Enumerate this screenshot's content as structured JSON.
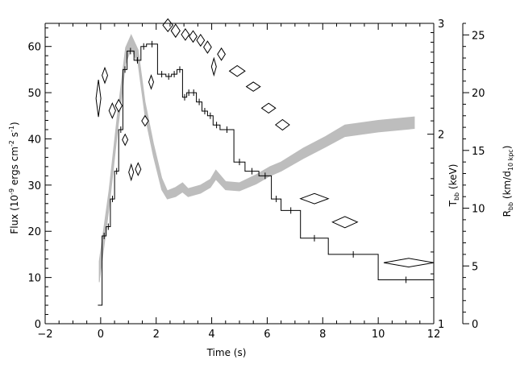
{
  "chart_data": {
    "type": "line",
    "xlabel": "Time (s)",
    "ylabel_left": {
      "main": "Flux (10",
      "e1": "-9",
      "mid": " ergs cm",
      "e2": "-2",
      "mid2": " s",
      "e3": "-1",
      "end": ")"
    },
    "ylabel_right1": {
      "main": "T",
      "sub": "bb",
      "end": " (keV)"
    },
    "ylabel_right2": {
      "main": "R",
      "sub": "bb",
      "mid": " (km/d",
      "sub2": "10 kpc",
      "end": ")"
    },
    "xlim": [
      -2,
      12
    ],
    "ylim_flux": [
      0,
      65
    ],
    "ylim_T_log": [
      1,
      3
    ],
    "ylim_R": [
      0,
      26
    ],
    "x_ticks": [
      -2,
      0,
      2,
      4,
      6,
      8,
      10,
      12
    ],
    "x_tick_labels": [
      "−2",
      "0",
      "2",
      "4",
      "6",
      "8",
      "10",
      "12"
    ],
    "flux_ticks": [
      0,
      10,
      20,
      30,
      40,
      50,
      60
    ],
    "flux_tick_labels": [
      "0",
      "10",
      "20",
      "30",
      "40",
      "50",
      "60"
    ],
    "T_ticks": [
      1,
      2,
      3
    ],
    "T_tick_labels": [
      "1",
      "2",
      "3"
    ],
    "R_ticks": [
      0,
      5,
      10,
      15,
      20,
      25
    ],
    "R_tick_labels": [
      "0",
      "5",
      "10",
      "15",
      "20",
      "25"
    ],
    "series": [
      {
        "role": "flux-histogram",
        "edges": [
          -0.1,
          0.05,
          0.2,
          0.35,
          0.5,
          0.65,
          0.8,
          0.95,
          1.2,
          1.45,
          1.65,
          2.05,
          2.35,
          2.55,
          2.75,
          2.95,
          3.1,
          3.25,
          3.45,
          3.65,
          3.85,
          4.05,
          4.3,
          4.8,
          5.2,
          5.7,
          6.15,
          6.5,
          7.2,
          8.2,
          10.0,
          12.0
        ],
        "values": [
          4,
          19,
          21,
          27,
          33,
          42,
          55,
          59,
          57,
          60,
          60.5,
          54,
          53.5,
          54,
          55,
          49,
          50,
          50,
          48,
          46,
          45,
          43,
          42,
          35,
          33,
          32,
          27,
          24.5,
          18.5,
          15,
          9.5
        ]
      },
      {
        "role": "temperature-diamonds",
        "points": [
          {
            "t": -0.08,
            "T": 2.28,
            "xerr": 0.08,
            "Terr": 0.16
          },
          {
            "t": 0.15,
            "T": 2.48,
            "xerr": 0.1,
            "Terr": 0.07
          },
          {
            "t": 0.42,
            "T": 2.18,
            "xerr": 0.12,
            "Terr": 0.06
          },
          {
            "t": 0.65,
            "T": 2.22,
            "xerr": 0.12,
            "Terr": 0.05
          },
          {
            "t": 0.88,
            "T": 1.96,
            "xerr": 0.1,
            "Terr": 0.04
          },
          {
            "t": 1.1,
            "T": 1.74,
            "xerr": 0.08,
            "Terr": 0.05
          },
          {
            "t": 1.35,
            "T": 1.76,
            "xerr": 0.1,
            "Terr": 0.04
          },
          {
            "t": 1.6,
            "T": 2.1,
            "xerr": 0.12,
            "Terr": 0.04
          },
          {
            "t": 1.82,
            "T": 2.42,
            "xerr": 0.08,
            "Terr": 0.06
          },
          {
            "t": 2.42,
            "T": 2.98,
            "xerr": 0.18,
            "Terr": 0.07
          },
          {
            "t": 2.7,
            "T": 2.92,
            "xerr": 0.16,
            "Terr": 0.07
          },
          {
            "t": 3.05,
            "T": 2.88,
            "xerr": 0.14,
            "Terr": 0.06
          },
          {
            "t": 3.33,
            "T": 2.86,
            "xerr": 0.14,
            "Terr": 0.06
          },
          {
            "t": 3.6,
            "T": 2.82,
            "xerr": 0.14,
            "Terr": 0.06
          },
          {
            "t": 3.85,
            "T": 2.75,
            "xerr": 0.14,
            "Terr": 0.06
          },
          {
            "t": 4.08,
            "T": 2.56,
            "xerr": 0.08,
            "Terr": 0.08
          },
          {
            "t": 4.35,
            "T": 2.68,
            "xerr": 0.14,
            "Terr": 0.06
          },
          {
            "t": 4.92,
            "T": 2.52,
            "xerr": 0.28,
            "Terr": 0.05
          },
          {
            "t": 5.5,
            "T": 2.38,
            "xerr": 0.25,
            "Terr": 0.04
          },
          {
            "t": 6.05,
            "T": 2.2,
            "xerr": 0.25,
            "Terr": 0.04
          },
          {
            "t": 6.55,
            "T": 2.07,
            "xerr": 0.25,
            "Terr": 0.04
          },
          {
            "t": 7.7,
            "T": 1.58,
            "xerr": 0.5,
            "Terr": 0.03
          },
          {
            "t": 8.8,
            "T": 1.45,
            "xerr": 0.45,
            "Terr": 0.03
          },
          {
            "t": 11.1,
            "T": 1.25,
            "xerr": 0.9,
            "Terr": 0.02
          }
        ]
      },
      {
        "role": "radius-band",
        "points": [
          {
            "t": -0.05,
            "lo": 3.6,
            "hi": 5.4
          },
          {
            "t": 0.3,
            "lo": 10.0,
            "hi": 11.5
          },
          {
            "t": 0.6,
            "lo": 16.5,
            "hi": 18.0
          },
          {
            "t": 0.9,
            "lo": 22.5,
            "hi": 23.9
          },
          {
            "t": 1.1,
            "lo": 23.8,
            "hi": 25.0
          },
          {
            "t": 1.35,
            "lo": 22.5,
            "hi": 23.7
          },
          {
            "t": 1.6,
            "lo": 18.0,
            "hi": 19.2
          },
          {
            "t": 1.9,
            "lo": 14.5,
            "hi": 15.6
          },
          {
            "t": 2.2,
            "lo": 11.6,
            "hi": 12.6
          },
          {
            "t": 2.4,
            "lo": 10.8,
            "hi": 11.5
          },
          {
            "t": 2.7,
            "lo": 11.0,
            "hi": 11.8
          },
          {
            "t": 2.95,
            "lo": 11.4,
            "hi": 12.2
          },
          {
            "t": 3.15,
            "lo": 11.0,
            "hi": 11.7
          },
          {
            "t": 3.6,
            "lo": 11.3,
            "hi": 12.0
          },
          {
            "t": 3.95,
            "lo": 11.8,
            "hi": 12.5
          },
          {
            "t": 4.15,
            "lo": 12.5,
            "hi": 13.3
          },
          {
            "t": 4.5,
            "lo": 11.6,
            "hi": 12.3
          },
          {
            "t": 5.0,
            "lo": 11.5,
            "hi": 12.2
          },
          {
            "t": 5.6,
            "lo": 12.1,
            "hi": 12.9
          },
          {
            "t": 6.1,
            "lo": 12.8,
            "hi": 13.6
          },
          {
            "t": 6.5,
            "lo": 13.2,
            "hi": 14.0
          },
          {
            "t": 7.3,
            "lo": 14.3,
            "hi": 15.2
          },
          {
            "t": 8.1,
            "lo": 15.3,
            "hi": 16.2
          },
          {
            "t": 8.8,
            "lo": 16.2,
            "hi": 17.2
          },
          {
            "t": 10.0,
            "lo": 16.6,
            "hi": 17.6
          },
          {
            "t": 11.3,
            "lo": 16.9,
            "hi": 17.9
          }
        ]
      }
    ],
    "colors": {
      "band": "#bdbdbd",
      "line": "#000000"
    }
  }
}
